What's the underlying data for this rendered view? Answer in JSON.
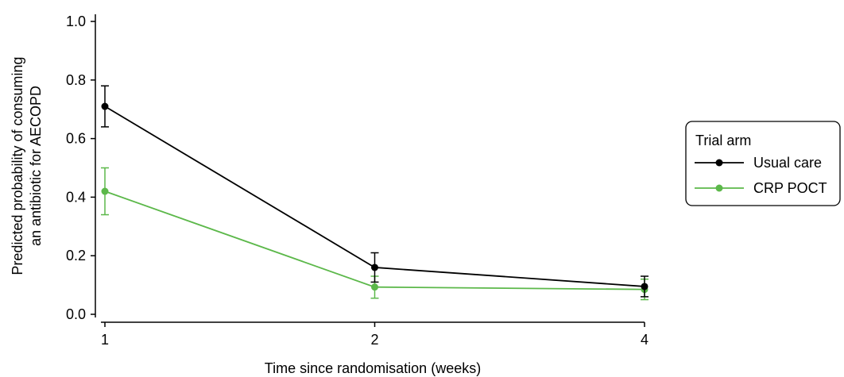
{
  "chart_data": {
    "type": "line",
    "title": "",
    "xlabel": "Time since randomisation (weeks)",
    "ylabel_lines": [
      "Predicted probability of consuming",
      "an antibiotic for AECOPD"
    ],
    "categories": [
      "1",
      "2",
      "4"
    ],
    "ylim": [
      0.0,
      1.0
    ],
    "yticks": [
      "0.0",
      "0.2",
      "0.4",
      "0.6",
      "0.8",
      "1.0"
    ],
    "grid": false,
    "legend": {
      "title": "Trial arm",
      "placement": "right"
    },
    "series": [
      {
        "name": "Usual care",
        "color": "#000000",
        "values": [
          0.71,
          0.16,
          0.095
        ],
        "lower": [
          0.64,
          0.11,
          0.06
        ],
        "upper": [
          0.78,
          0.21,
          0.13
        ]
      },
      {
        "name": "CRP POCT",
        "color": "#5cb84a",
        "values": [
          0.42,
          0.093,
          0.085
        ],
        "lower": [
          0.34,
          0.055,
          0.05
        ],
        "upper": [
          0.5,
          0.13,
          0.12
        ]
      }
    ]
  }
}
